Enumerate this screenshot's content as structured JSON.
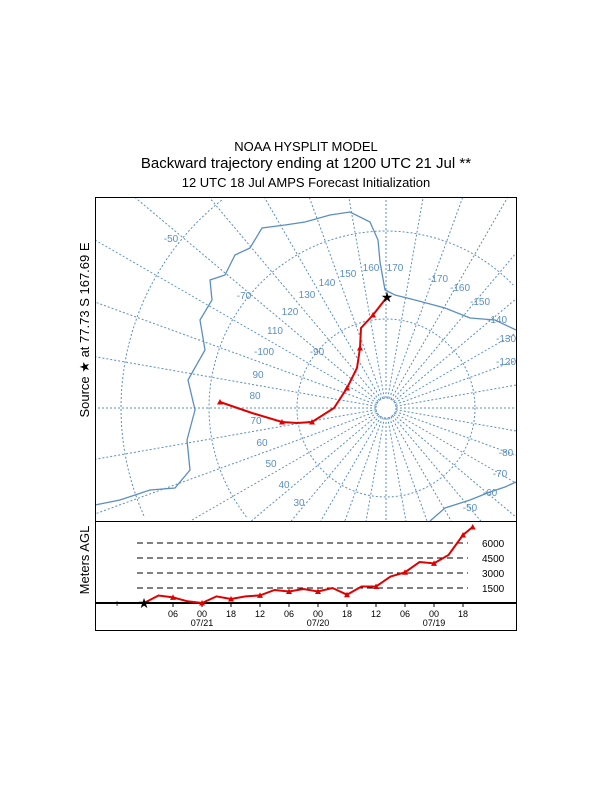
{
  "header": {
    "model": "NOAA HYSPLIT MODEL",
    "title": "Backward trajectory ending at 1200 UTC 21 Jul **",
    "subtitle": "12 UTC 18 Jul    AMPS  Forecast Initialization"
  },
  "source_label": {
    "prefix": "Source",
    "star": "★",
    "at": "at",
    "lat": "77.73 S",
    "lon": "167.69 E"
  },
  "map": {
    "colors": {
      "grid": "#5b8fc0",
      "coast": "#5b8fc0",
      "trajectory": "#e00000",
      "source": "#000000"
    },
    "grid_labels": [
      "-50",
      "-70",
      "150",
      "160",
      "170",
      "-170",
      "-160",
      "-150",
      "140",
      "130",
      "120",
      "110",
      "-100",
      "-90",
      "90",
      "80",
      "70",
      "60",
      "50",
      "40",
      "30",
      "-140",
      "-130",
      "-120",
      "-80",
      "-70",
      "-60",
      "-50"
    ]
  },
  "chart_data": {
    "type": "line",
    "title": "Backward trajectory ending at 1200 UTC 21 Jul",
    "ylabel": "Meters AGL",
    "xlabel": "",
    "x_unit": "hours before 1200 UTC 21 Jul",
    "ylim": [
      0,
      8000
    ],
    "reference_levels": [
      "6000",
      "4500",
      "3000",
      "1500"
    ],
    "x_tick_labels": [
      "06",
      "00",
      "18",
      "12",
      "06",
      "00",
      "18",
      "12",
      "06",
      "00",
      "18"
    ],
    "x_tick_hours": [
      6,
      12,
      18,
      24,
      30,
      36,
      42,
      48,
      54,
      60,
      66
    ],
    "date_labels": [
      {
        "label": "07/21",
        "hour": 12
      },
      {
        "label": "07/20",
        "hour": 36
      },
      {
        "label": "07/19",
        "hour": 60
      }
    ],
    "series": [
      {
        "name": "trajectory",
        "color": "#e00000",
        "x": [
          0,
          3,
          6,
          9,
          12,
          15,
          18,
          21,
          24,
          27,
          30,
          33,
          36,
          39,
          42,
          45,
          48,
          51,
          54,
          57,
          60,
          63,
          66,
          68
        ],
        "values": [
          0,
          750,
          560,
          170,
          0,
          660,
          400,
          660,
          760,
          1300,
          1150,
          1400,
          1150,
          1500,
          830,
          1650,
          1650,
          2640,
          3070,
          4100,
          3960,
          4800,
          6800,
          7600
        ]
      }
    ]
  }
}
